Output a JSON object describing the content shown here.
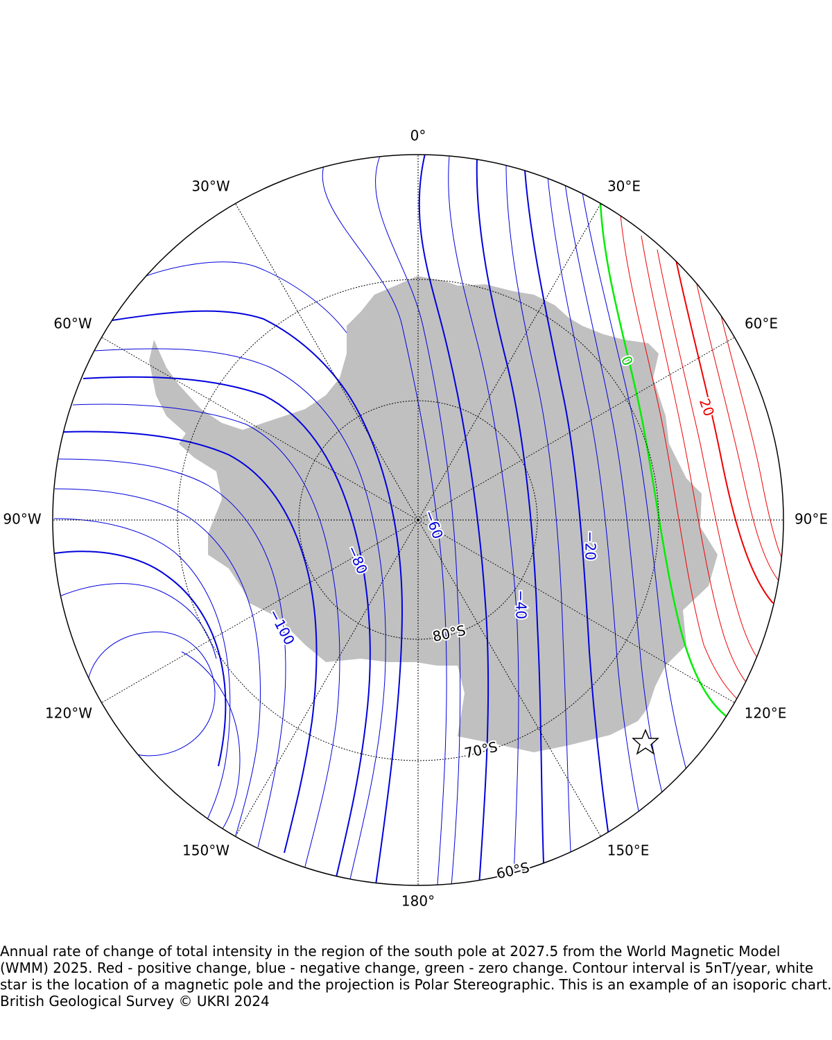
{
  "map": {
    "projection": "Polar Stereographic",
    "pole_label": "",
    "longitude_labels": [
      {
        "lon": 0,
        "text": "0°"
      },
      {
        "lon": 30,
        "text": "30°E"
      },
      {
        "lon": 60,
        "text": "60°E"
      },
      {
        "lon": 90,
        "text": "90°E"
      },
      {
        "lon": 120,
        "text": "120°E"
      },
      {
        "lon": 150,
        "text": "150°E"
      },
      {
        "lon": 180,
        "text": "180°"
      },
      {
        "lon": -150,
        "text": "150°W"
      },
      {
        "lon": -120,
        "text": "120°W"
      },
      {
        "lon": -90,
        "text": "90°W"
      },
      {
        "lon": -60,
        "text": "60°W"
      },
      {
        "lon": -30,
        "text": "30°W"
      }
    ],
    "latitude_labels": [
      {
        "lat": -80,
        "text": "80°S"
      },
      {
        "lat": -70,
        "text": "70°S"
      },
      {
        "lat": -60,
        "text": "60°S"
      }
    ],
    "contour_labels": [
      {
        "value": -100,
        "text": "−100"
      },
      {
        "value": -80,
        "text": "−80"
      },
      {
        "value": -60,
        "text": "−60"
      },
      {
        "value": -40,
        "text": "−40"
      },
      {
        "value": -20,
        "text": "−20"
      },
      {
        "value": 0,
        "text": "0"
      },
      {
        "value": 20,
        "text": "20"
      }
    ],
    "contour_interval": "5nT/year",
    "colors": {
      "negative": "#0000dd",
      "zero": "#00ee00",
      "positive": "#ee0000",
      "land": "#c0c0c0",
      "graticule": "#000000"
    },
    "magnetic_pole_marker": "star-icon"
  },
  "caption": {
    "line1": "Annual rate of change of total intensity in the region of the south pole at 2027.5 from the World Magnetic Model (WMM) 2025. Red - positive change, blue - negative change, green - zero change. Contour interval is 5nT/year, white star is the location of a magnetic pole and the projection is Polar Stereographic. This is an example of an isoporic chart.",
    "line2": "British Geological Survey © UKRI 2024"
  }
}
